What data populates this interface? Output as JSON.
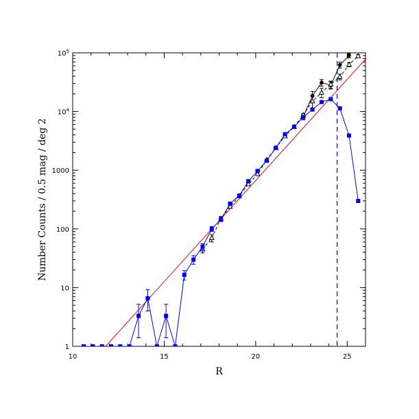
{
  "chart_data": {
    "type": "scatter",
    "title": "",
    "xlabel": "R",
    "ylabel": "Number Counts / 0.5 mag / deg 2",
    "xlim": [
      10,
      26
    ],
    "ylim": [
      1,
      100000
    ],
    "yscale": "log",
    "x_ticks": [
      10,
      15,
      20,
      25
    ],
    "x_tick_labels": [
      "10",
      "15",
      "20",
      "25"
    ],
    "y_ticks": [
      1,
      10,
      100,
      1000,
      10000,
      100000
    ],
    "y_tick_labels": [
      "1",
      "10",
      "100",
      "1000",
      "10^4",
      "10^5"
    ],
    "series": [
      {
        "style": "blue filled squares with error bars, solid line",
        "color": "#0000ff",
        "x": [
          10.6,
          11.1,
          11.6,
          12.1,
          12.6,
          13.1,
          13.6,
          14.1,
          14.6,
          15.1,
          15.6,
          16.1,
          16.6,
          17.1,
          17.6,
          18.1,
          18.6,
          19.1,
          19.6,
          20.1,
          20.6,
          21.1,
          21.6,
          22.1,
          22.6,
          23.1,
          23.6,
          24.1,
          24.6,
          25.1,
          25.6
        ],
        "y": [
          1,
          1,
          1,
          1,
          1,
          1,
          3.3,
          6.6,
          1,
          3.3,
          1,
          16.5,
          30,
          50,
          100,
          145,
          270,
          370,
          650,
          970,
          1450,
          2400,
          4100,
          5500,
          8000,
          10800,
          14500,
          16200,
          11300,
          3900,
          300
        ],
        "err_low": [
          0,
          0,
          0,
          0,
          0,
          0,
          1.9,
          2.6,
          0,
          1.9,
          0,
          3.0,
          5,
          6,
          10,
          12,
          17,
          20,
          30,
          35,
          45,
          60,
          80,
          90,
          100,
          120,
          140,
          150,
          120,
          70,
          20
        ],
        "err_high": [
          0,
          0,
          0,
          0,
          0,
          0,
          1.9,
          2.6,
          0,
          1.9,
          0,
          3.0,
          5,
          6,
          10,
          12,
          17,
          20,
          30,
          35,
          45,
          60,
          80,
          90,
          100,
          120,
          140,
          150,
          120,
          70,
          20
        ]
      },
      {
        "style": "black open triangles with error bars, dashed line",
        "color": "#000000",
        "x": [
          17.1,
          17.6,
          18.1,
          18.6,
          19.1,
          19.6,
          20.1,
          20.6,
          21.1,
          21.6,
          22.1,
          22.6,
          23.1,
          23.6,
          24.1,
          24.6,
          25.1,
          25.6
        ],
        "y": [
          45,
          70,
          150,
          240,
          360,
          580,
          860,
          1500,
          2400,
          3800,
          5500,
          8700,
          15000,
          21000,
          29000,
          39000,
          63000,
          88000
        ],
        "err_low": [
          6,
          10,
          12,
          16,
          20,
          30,
          35,
          45,
          60,
          80,
          100,
          150,
          3500,
          3800,
          4000,
          4500,
          5000,
          5500
        ],
        "err_high": [
          6,
          10,
          12,
          16,
          20,
          30,
          35,
          45,
          60,
          80,
          100,
          150,
          3500,
          3800,
          4000,
          4500,
          5000,
          5500
        ]
      },
      {
        "style": "black filled circles with error bars, solid line",
        "color": "#000000",
        "x": [
          22.6,
          23.1,
          23.6,
          24.1,
          24.6,
          25.1
        ],
        "y": [
          8200,
          18500,
          31000,
          28000,
          62000,
          90000
        ],
        "err_low": [
          1000,
          3500,
          4000,
          4000,
          7000,
          8000
        ],
        "err_high": [
          1000,
          3500,
          4000,
          4000,
          7000,
          8000
        ]
      }
    ],
    "lines": [
      {
        "label": "",
        "color": "#ff0000",
        "style": "solid",
        "x": [
          11.8,
          26.0
        ],
        "y": [
          1,
          78000
        ]
      }
    ],
    "vlines": [
      {
        "x": 24.45,
        "color": "#0000ff",
        "style": "dashed"
      }
    ]
  }
}
